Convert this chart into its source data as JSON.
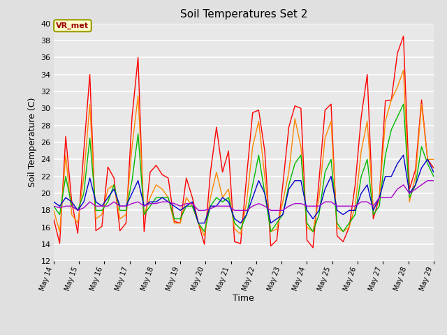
{
  "title": "Soil Temperatures Set 2",
  "xlabel": "Time",
  "ylabel": "Soil Temperature (C)",
  "ylim": [
    12,
    40
  ],
  "yticks": [
    12,
    14,
    16,
    18,
    20,
    22,
    24,
    26,
    28,
    30,
    32,
    34,
    36,
    38,
    40
  ],
  "background_color": "#e0e0e0",
  "plot_bg_color": "#e8e8e8",
  "grid_color": "white",
  "annotation_text": "VR_met",
  "annotation_bg": "#ffffcc",
  "annotation_border": "#999900",
  "annotation_text_color": "#990000",
  "series": {
    "Tsoil -2cm": {
      "color": "#ff0000",
      "lw": 1.0
    },
    "Tsoil -4cm": {
      "color": "#ff8800",
      "lw": 1.0
    },
    "Tsoil -8cm": {
      "color": "#00bb00",
      "lw": 1.0
    },
    "Tsoil -16cm": {
      "color": "#0000cc",
      "lw": 1.0
    },
    "Tsoil -32cm": {
      "color": "#aa00cc",
      "lw": 1.0
    }
  },
  "tsoil_2cm": [
    17.0,
    14.1,
    26.7,
    19.0,
    15.3,
    25.0,
    34.0,
    15.6,
    16.1,
    23.1,
    21.8,
    15.6,
    16.5,
    29.0,
    36.0,
    15.5,
    22.5,
    23.3,
    22.2,
    21.8,
    16.7,
    16.5,
    21.8,
    19.5,
    16.5,
    14.0,
    22.5,
    27.8,
    22.5,
    25.0,
    14.3,
    14.1,
    22.0,
    29.5,
    29.8,
    25.0,
    13.8,
    14.5,
    21.0,
    27.8,
    30.3,
    30.0,
    14.5,
    13.6,
    21.5,
    29.8,
    30.5,
    15.0,
    14.3,
    16.0,
    21.0,
    29.0,
    34.0,
    17.0,
    19.5,
    30.9,
    31.0,
    36.5,
    38.5,
    20.5,
    22.8,
    31.0,
    24.0,
    23.0
  ],
  "tsoil_4cm": [
    18.0,
    15.5,
    24.5,
    17.5,
    16.5,
    22.0,
    30.5,
    17.0,
    17.5,
    20.5,
    21.0,
    17.0,
    17.5,
    25.5,
    31.5,
    17.5,
    19.5,
    21.0,
    20.5,
    19.5,
    16.5,
    16.5,
    19.5,
    18.5,
    16.5,
    15.0,
    19.5,
    22.5,
    19.5,
    20.5,
    15.8,
    15.2,
    19.0,
    25.5,
    28.5,
    22.0,
    15.5,
    15.8,
    19.0,
    22.5,
    28.8,
    25.5,
    16.0,
    15.5,
    19.5,
    26.5,
    28.5,
    16.0,
    15.5,
    16.0,
    18.5,
    25.0,
    28.5,
    18.0,
    19.5,
    28.5,
    31.0,
    32.5,
    34.5,
    19.0,
    22.0,
    30.5,
    24.0,
    24.0
  ],
  "tsoil_8cm": [
    18.5,
    17.5,
    22.0,
    18.5,
    18.0,
    20.0,
    26.5,
    18.0,
    18.0,
    19.0,
    21.0,
    18.0,
    18.0,
    21.5,
    27.0,
    17.5,
    18.5,
    19.5,
    19.5,
    19.5,
    17.0,
    17.0,
    18.5,
    18.5,
    16.5,
    15.5,
    18.5,
    19.5,
    19.0,
    19.5,
    16.5,
    15.8,
    17.5,
    21.0,
    24.5,
    20.0,
    15.5,
    16.5,
    17.5,
    21.0,
    23.5,
    24.5,
    16.5,
    15.5,
    17.5,
    22.5,
    24.0,
    16.5,
    15.5,
    16.5,
    17.5,
    22.0,
    24.0,
    17.5,
    18.5,
    24.5,
    27.5,
    29.0,
    30.5,
    19.5,
    21.0,
    25.5,
    23.5,
    22.0
  ],
  "tsoil_16cm": [
    19.0,
    18.5,
    19.5,
    19.0,
    18.0,
    19.0,
    21.8,
    19.0,
    18.5,
    19.5,
    20.5,
    18.5,
    18.5,
    20.0,
    21.5,
    18.5,
    19.0,
    19.0,
    19.5,
    19.0,
    18.5,
    18.0,
    18.5,
    19.0,
    16.5,
    16.5,
    18.5,
    18.5,
    19.5,
    19.0,
    17.0,
    16.5,
    17.5,
    19.5,
    21.5,
    20.0,
    16.5,
    17.0,
    17.5,
    20.5,
    21.5,
    21.5,
    18.0,
    17.0,
    18.0,
    20.5,
    22.0,
    18.0,
    17.5,
    18.0,
    18.0,
    20.0,
    21.0,
    18.0,
    19.5,
    22.0,
    22.0,
    23.5,
    24.5,
    20.0,
    21.0,
    23.0,
    24.0,
    22.5
  ],
  "tsoil_32cm": [
    18.5,
    18.3,
    18.5,
    18.5,
    18.0,
    18.3,
    19.0,
    18.5,
    18.5,
    18.5,
    19.0,
    18.5,
    18.5,
    18.8,
    19.0,
    18.5,
    18.8,
    18.8,
    19.0,
    19.0,
    18.8,
    18.5,
    18.8,
    18.8,
    18.0,
    18.0,
    18.2,
    18.5,
    18.5,
    18.5,
    18.0,
    18.0,
    18.0,
    18.5,
    18.8,
    18.5,
    18.0,
    18.0,
    18.0,
    18.5,
    18.8,
    18.8,
    18.5,
    18.5,
    18.5,
    19.0,
    19.0,
    18.5,
    18.5,
    18.5,
    18.5,
    19.0,
    19.0,
    18.5,
    19.5,
    19.5,
    19.5,
    20.5,
    21.0,
    20.0,
    20.5,
    21.0,
    21.5,
    21.5
  ],
  "xtick_days": [
    14,
    15,
    16,
    17,
    18,
    19,
    20,
    21,
    22,
    23,
    24,
    25,
    26,
    27,
    28,
    29
  ],
  "xtick_labels": [
    "May 14",
    "May 15",
    "May 16",
    "May 17",
    "May 18",
    "May 19",
    "May 20",
    "May 21",
    "May 22",
    "May 23",
    "May 24",
    "May 25",
    "May 26",
    "May 27",
    "May 28",
    "May 29"
  ]
}
